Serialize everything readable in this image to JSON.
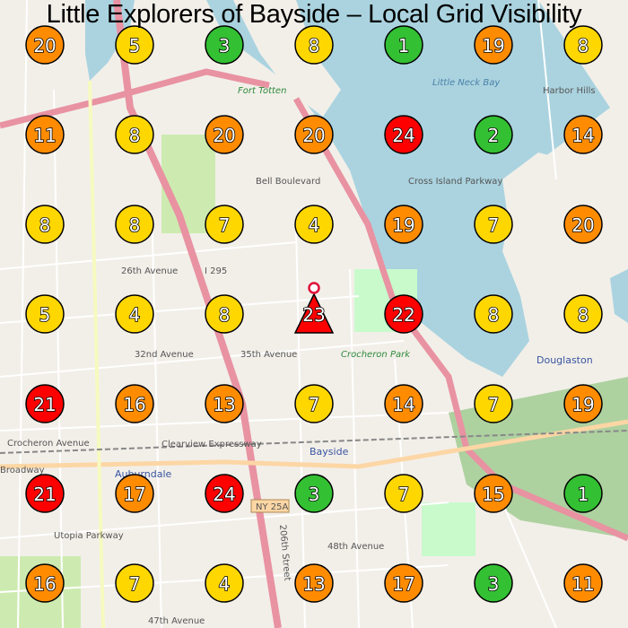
{
  "title": "Little Explorers of Bayside – Local Grid Visibility",
  "map_labels": {
    "fort_totten": "Fort Totten",
    "little_neck_bay": "Little Neck Bay",
    "harbor_hills": "Harbor Hills",
    "bell_boulevard": "Bell Boulevard",
    "cross_island_parkway": "Cross Island Parkway",
    "ave26": "26th Avenue",
    "ave32": "32nd Avenue",
    "ave35": "35th Avenue",
    "i295": "I 295",
    "crocheron_park": "Crocheron Park",
    "crocheron_avenue": "Crocheron Avenue",
    "bayside": "Bayside",
    "auburndale": "Auburndale",
    "utopia_parkway": "Utopia Parkway",
    "douglaston": "Douglaston",
    "ny25a": "NY 25A",
    "ave48": "48th Avenue",
    "ave47": "47th Avenue",
    "broadway": "Broadway",
    "clearview": "Clearview Expressway",
    "street206": "206th Street"
  },
  "legend_colors": {
    "low": "#33c033",
    "medium": "#ffd700",
    "high": "#ff8c00",
    "very_high": "#ff0000"
  },
  "grid": [
    [
      20,
      5,
      3,
      8,
      1,
      19,
      8
    ],
    [
      11,
      8,
      20,
      20,
      24,
      2,
      14
    ],
    [
      8,
      8,
      7,
      4,
      19,
      7,
      20
    ],
    [
      5,
      4,
      8,
      23,
      22,
      8,
      8
    ],
    [
      21,
      16,
      13,
      7,
      14,
      7,
      19
    ],
    [
      21,
      17,
      24,
      3,
      7,
      15,
      1
    ],
    [
      16,
      7,
      4,
      13,
      17,
      3,
      11
    ]
  ],
  "current_location": {
    "row": 3,
    "col": 3,
    "marker": "triangle",
    "icon": "map-pin-icon"
  }
}
